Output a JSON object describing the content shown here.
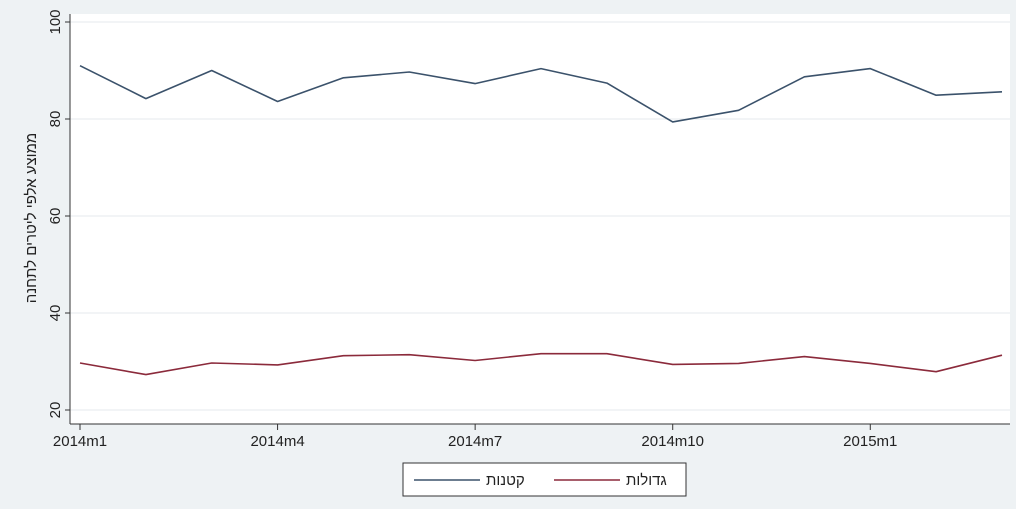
{
  "chart_data": {
    "type": "line",
    "ylabel": "ממוצע אלפי ליטרים לתחנה",
    "xlabel": "",
    "ylim": [
      20,
      100
    ],
    "yticks": [
      20,
      40,
      60,
      80,
      100
    ],
    "x": [
      "2014m1",
      "2014m2",
      "2014m3",
      "2014m4",
      "2014m5",
      "2014m6",
      "2014m7",
      "2014m8",
      "2014m9",
      "2014m10",
      "2014m11",
      "2014m12",
      "2015m1",
      "2015m2",
      "2015m3"
    ],
    "xtick_labels": [
      "2014m1",
      "2014m4",
      "2014m7",
      "2014m10",
      "2015m1"
    ],
    "grid": true,
    "legend_position": "bottom",
    "series": [
      {
        "name": "קטנות",
        "color": "#3b526b",
        "values": [
          91.0,
          84.2,
          90.0,
          83.6,
          88.5,
          89.7,
          87.3,
          90.4,
          87.4,
          79.4,
          81.8,
          88.7,
          90.4,
          84.9,
          85.6
        ]
      },
      {
        "name": "גדולות",
        "color": "#8b2a3b",
        "values": [
          29.7,
          27.3,
          29.7,
          29.3,
          31.2,
          31.4,
          30.2,
          31.6,
          31.6,
          29.4,
          29.6,
          31.0,
          29.6,
          27.9,
          31.3
        ]
      }
    ]
  }
}
